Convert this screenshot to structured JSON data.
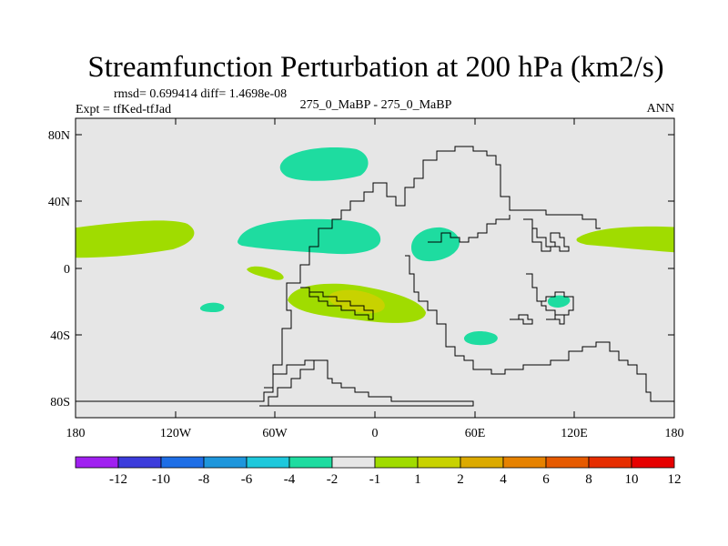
{
  "figure": {
    "title": "Streamfunction Perturbation at 200 hPa (km2/s)",
    "stats": "rmsd= 0.699414 diff= 1.4698e-08",
    "experiment": "Expt = tfKed-tfJad",
    "comparison": "275_0_MaBP - 275_0_MaBP",
    "season": "ANN"
  },
  "map": {
    "background_color": "#e6e6e6",
    "x_ticks": [
      "180",
      "120W",
      "60W",
      "0",
      "60E",
      "120E",
      "180"
    ],
    "y_ticks": [
      "80N",
      "40N",
      "0",
      "40S",
      "80S"
    ],
    "lon_range": [
      -180,
      180
    ],
    "lat_range": [
      -90,
      90
    ]
  },
  "colorbar": {
    "colors": [
      "#a020f0",
      "#3c3cdc",
      "#1e6ee6",
      "#1e96dc",
      "#1ec8dc",
      "#1edca0",
      "#e6e6e6",
      "#a0dc00",
      "#c8d200",
      "#dcaa00",
      "#e68200",
      "#e65a00",
      "#e62d00",
      "#e60000"
    ],
    "labels": [
      "-12",
      "-10",
      "-8",
      "-6",
      "-4",
      "-2",
      "-1",
      "1",
      "2",
      "4",
      "6",
      "8",
      "10",
      "12"
    ]
  }
}
